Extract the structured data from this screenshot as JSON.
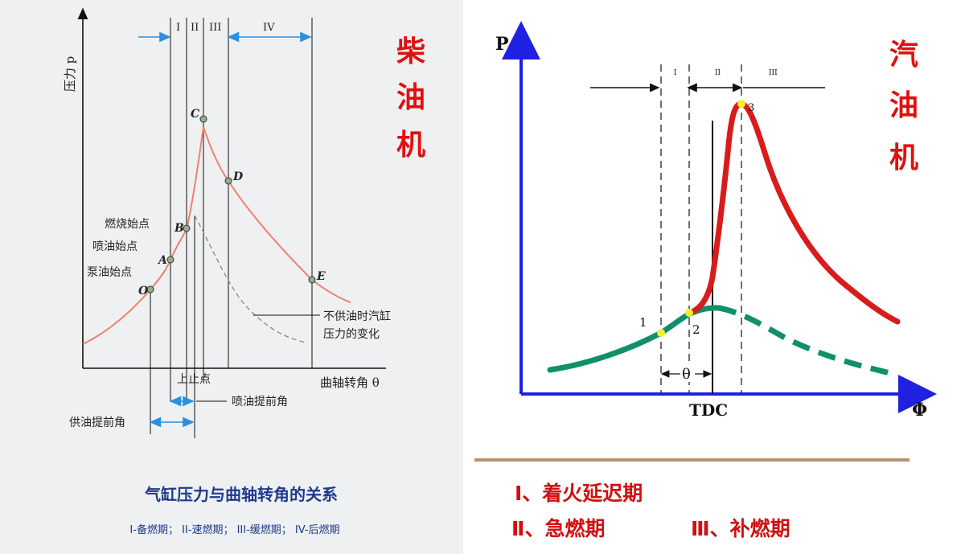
{
  "diesel": {
    "y_axis_label": "压力 p",
    "x_axis_label": "曲轴转角 θ",
    "phases": [
      "I",
      "II",
      "III",
      "IV"
    ],
    "points": [
      "C",
      "D",
      "B",
      "A",
      "O",
      "E"
    ],
    "annotations": {
      "combustion_start": "燃烧始点",
      "injection_start": "喷油始点",
      "pump_start": "泵油始点",
      "no_fuel_pressure": "不供油时汽缸\n压力的变化",
      "tdc": "上止点",
      "injection_advance": "喷油提前角",
      "supply_advance": "供油提前角"
    },
    "side_title": "柴油机",
    "caption": "气缸压力与曲轴转角的关系",
    "phase_legend": "I-备燃期； II-速燃期； III-缓燃期； IV-后燃期"
  },
  "gasoline": {
    "y_axis_label": "P",
    "x_axis_label": "Φ",
    "tdc_label": "TDC",
    "theta_label": "θ",
    "phases": [
      "I",
      "II",
      "III"
    ],
    "points": [
      "1",
      "2",
      "3"
    ],
    "side_title": "汽油机",
    "legend_line1": "Ⅰ、着火延迟期",
    "legend_line2_a": "Ⅱ、急燃期",
    "legend_line2_b": "Ⅲ、补燃期"
  },
  "colors": {
    "diesel_curve": "#f08070",
    "gasoline_red": "#d81c1c",
    "gasoline_green": "#10906a",
    "axis_blue": "#2020e0",
    "arrow_blue": "#2b8fe0",
    "title_red": "#e01010",
    "divider": "#b8946a"
  }
}
